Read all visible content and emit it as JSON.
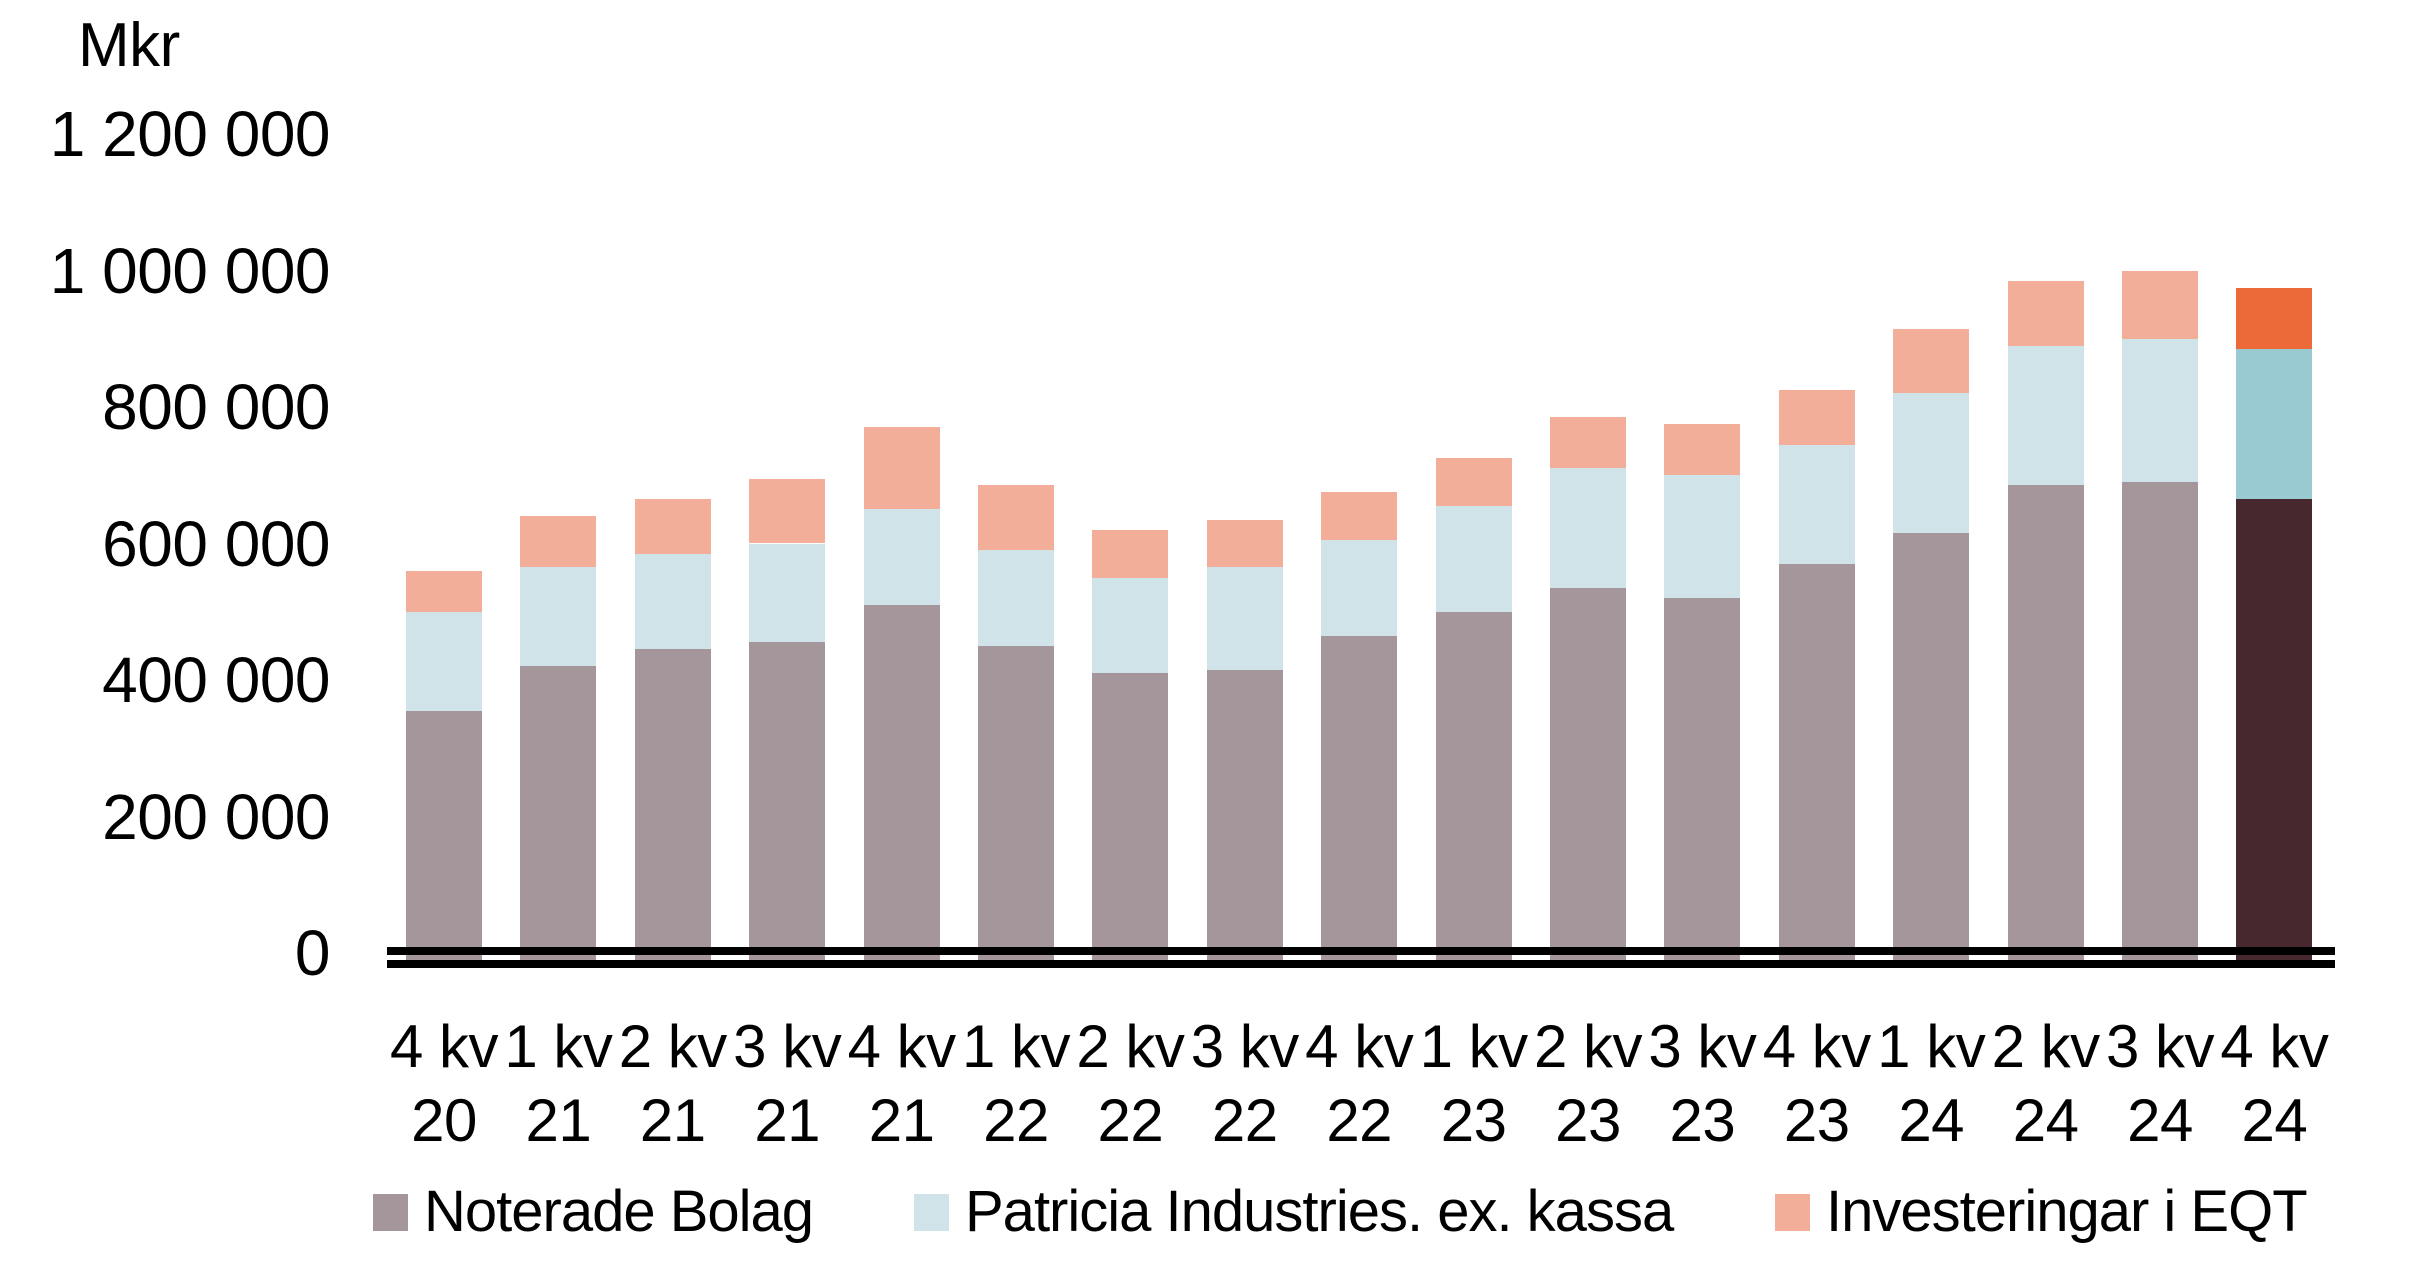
{
  "y_axis": {
    "unit": "Mkr",
    "ticks": [
      {
        "label": "1 200 000",
        "value": 1200000
      },
      {
        "label": "1 000 000",
        "value": 1000000
      },
      {
        "label": "800 000",
        "value": 800000
      },
      {
        "label": "600 000",
        "value": 600000
      },
      {
        "label": "400 000",
        "value": 400000
      },
      {
        "label": "200 000",
        "value": 200000
      },
      {
        "label": "0",
        "value": 0
      }
    ]
  },
  "legend": [
    {
      "label": "Noterade Bolag",
      "color": "#A4969B"
    },
    {
      "label": "Patricia Industries. ex. kassa",
      "color": "#CFE3E8"
    },
    {
      "label": "Investeringar i EQT",
      "color": "#F2AE98"
    }
  ],
  "chart_data": {
    "type": "bar",
    "stacked": true,
    "unit": "Mkr",
    "ylim": [
      0,
      1200000
    ],
    "grid": false,
    "legend_position": "bottom",
    "categories": [
      {
        "line1": "4 kv",
        "line2": "20"
      },
      {
        "line1": "1 kv",
        "line2": "21"
      },
      {
        "line1": "2 kv",
        "line2": "21"
      },
      {
        "line1": "3 kv",
        "line2": "21"
      },
      {
        "line1": "4 kv",
        "line2": "21"
      },
      {
        "line1": "1 kv",
        "line2": "22"
      },
      {
        "line1": "2 kv",
        "line2": "22"
      },
      {
        "line1": "3 kv",
        "line2": "22"
      },
      {
        "line1": "4 kv",
        "line2": "22"
      },
      {
        "line1": "1 kv",
        "line2": "23"
      },
      {
        "line1": "2 kv",
        "line2": "23"
      },
      {
        "line1": "3 kv",
        "line2": "23"
      },
      {
        "line1": "4 kv",
        "line2": "23"
      },
      {
        "line1": "1 kv",
        "line2": "24"
      },
      {
        "line1": "2 kv",
        "line2": "24"
      },
      {
        "line1": "3 kv",
        "line2": "24"
      },
      {
        "line1": "4 kv",
        "line2": "24"
      }
    ],
    "series": [
      {
        "name": "Noterade Bolag",
        "color": "#A4969B",
        "values": [
          355000,
          420000,
          445000,
          455000,
          510000,
          450000,
          410000,
          415000,
          465000,
          500000,
          535000,
          520000,
          570000,
          615000,
          685000,
          690000,
          665000
        ]
      },
      {
        "name": "Patricia Industries. ex. kassa",
        "color": "#CFE3E8",
        "values": [
          145000,
          145000,
          140000,
          145000,
          140000,
          140000,
          140000,
          150000,
          140000,
          155000,
          175000,
          180000,
          175000,
          205000,
          205000,
          210000,
          220000
        ]
      },
      {
        "name": "Investeringar i EQT",
        "color": "#F2AE98",
        "values": [
          60000,
          75000,
          80000,
          95000,
          120000,
          95000,
          70000,
          70000,
          70000,
          70000,
          75000,
          75000,
          80000,
          95000,
          95000,
          100000,
          90000
        ]
      }
    ],
    "highlight": {
      "category_index": 16,
      "category_label": "4 kv 24",
      "colors": [
        "#48282F",
        "#99C9D1",
        "#EC6A39"
      ]
    }
  }
}
